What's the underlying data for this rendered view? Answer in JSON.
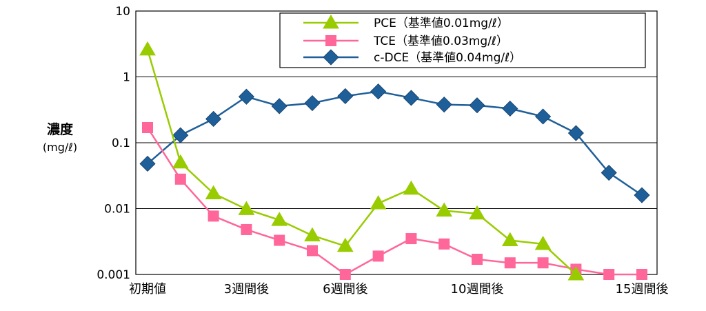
{
  "chart_data": {
    "type": "line",
    "ylabel": "濃度",
    "yunit": "(mg/ℓ)",
    "yscale": "log",
    "ylim": [
      0.001,
      10
    ],
    "yticks": [
      {
        "value": 0.001,
        "label": "0.001"
      },
      {
        "value": 0.01,
        "label": "0.01"
      },
      {
        "value": 0.1,
        "label": "0.1"
      },
      {
        "value": 1,
        "label": "1"
      },
      {
        "value": 10,
        "label": "10"
      }
    ],
    "grid": true,
    "legend": "top-right",
    "x": [
      0,
      1,
      2,
      3,
      4,
      5,
      6,
      7,
      8,
      9,
      10,
      11,
      12,
      13,
      14,
      15
    ],
    "xticks": [
      {
        "index": 0,
        "label": "初期値"
      },
      {
        "index": 3,
        "label": "3週間後"
      },
      {
        "index": 6,
        "label": "6週間後"
      },
      {
        "index": 10,
        "label": "10週間後"
      },
      {
        "index": 15,
        "label": "15週間後"
      }
    ],
    "series": [
      {
        "name": "PCE（基準値0.01mg/ℓ）",
        "marker": "triangle",
        "color": "#99cc00",
        "values": [
          2.6,
          0.05,
          0.017,
          0.0098,
          0.0067,
          0.0039,
          0.0027,
          0.012,
          0.02,
          0.0093,
          0.0084,
          0.0033,
          0.0029,
          0.001,
          null,
          null
        ]
      },
      {
        "name": "TCE（基準値0.03mg/ℓ）",
        "marker": "square",
        "color": "#ff6699",
        "values": [
          0.17,
          0.028,
          0.0077,
          0.0048,
          0.0033,
          0.0023,
          0.001,
          0.0019,
          0.0035,
          0.0029,
          0.0017,
          0.0015,
          0.0015,
          0.0012,
          0.001,
          0.001
        ]
      },
      {
        "name": "c-DCE（基準値0.04mg/ℓ）",
        "marker": "diamond",
        "color": "#1f5f99",
        "values": [
          0.048,
          0.13,
          0.23,
          0.5,
          0.36,
          0.4,
          0.51,
          0.6,
          0.48,
          0.38,
          0.37,
          0.33,
          0.25,
          0.14,
          0.035,
          0.016
        ]
      }
    ]
  }
}
